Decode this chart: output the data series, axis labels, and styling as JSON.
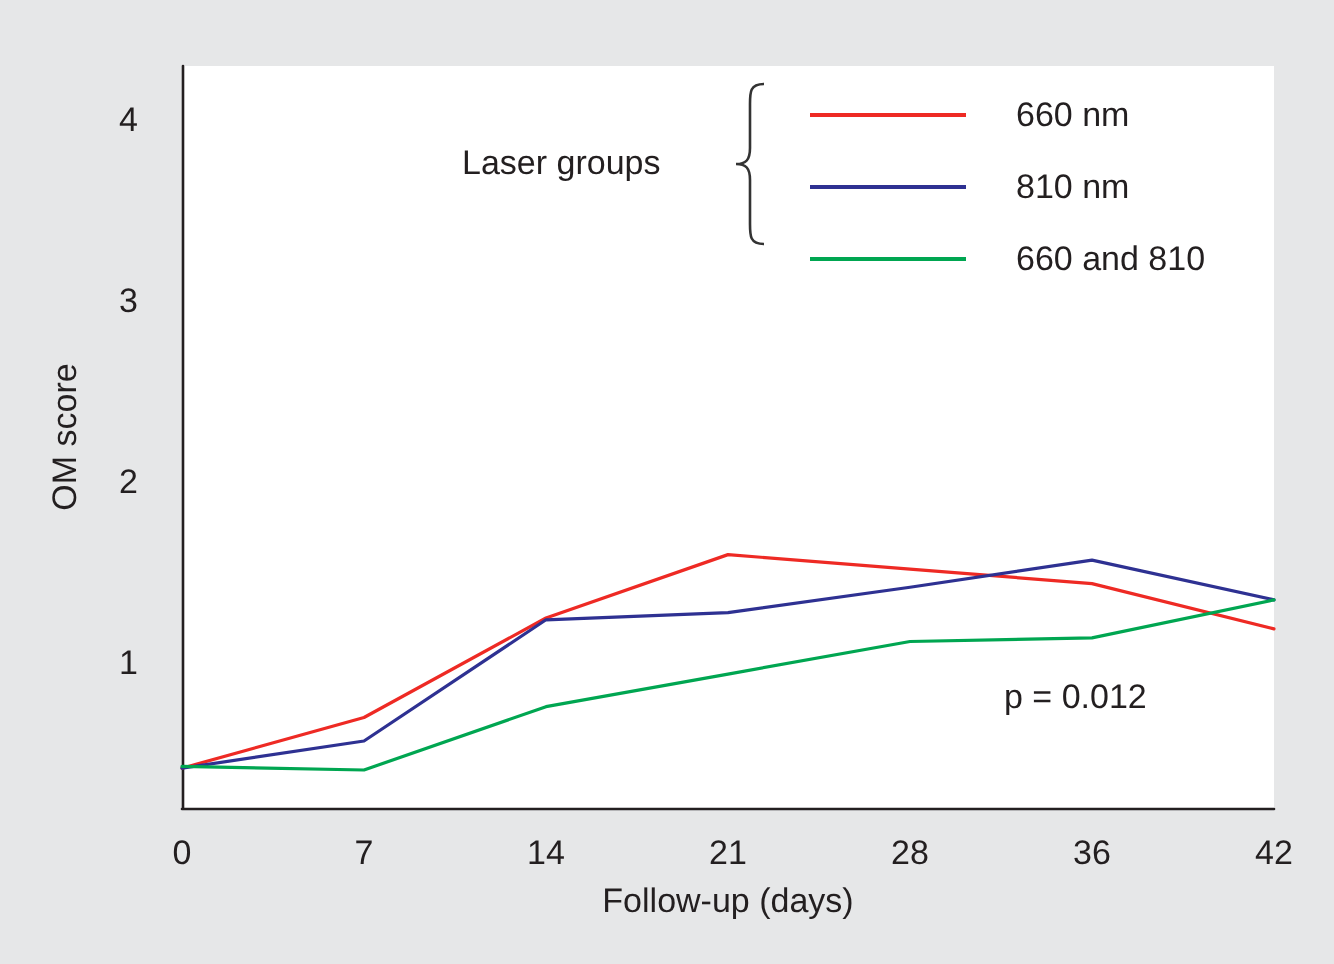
{
  "chart_data": {
    "type": "line",
    "xlabel": "Follow-up (days)",
    "ylabel": "OM score",
    "legend_title": "Laser groups",
    "annotations": [
      "p = 0.012"
    ],
    "categories": [
      "0",
      "7",
      "14",
      "21",
      "28",
      "36",
      "42"
    ],
    "ylim": [
      0.2,
      4.3
    ],
    "yticks": [
      1,
      2,
      3,
      4
    ],
    "grid": false,
    "legend": "top right",
    "marker": "none",
    "line_style": "solid",
    "series": [
      {
        "name": "660 nm",
        "color": "#ee2a24",
        "values": [
          0.42,
          0.7,
          1.25,
          1.6,
          1.52,
          1.44,
          1.19
        ]
      },
      {
        "name": "810 nm",
        "color": "#2e3192",
        "values": [
          0.42,
          0.57,
          1.24,
          1.28,
          1.42,
          1.57,
          1.35
        ]
      },
      {
        "name": "660 and 810",
        "color": "#00a651",
        "values": [
          0.43,
          0.41,
          0.76,
          0.94,
          1.12,
          1.14,
          1.35
        ]
      }
    ]
  }
}
